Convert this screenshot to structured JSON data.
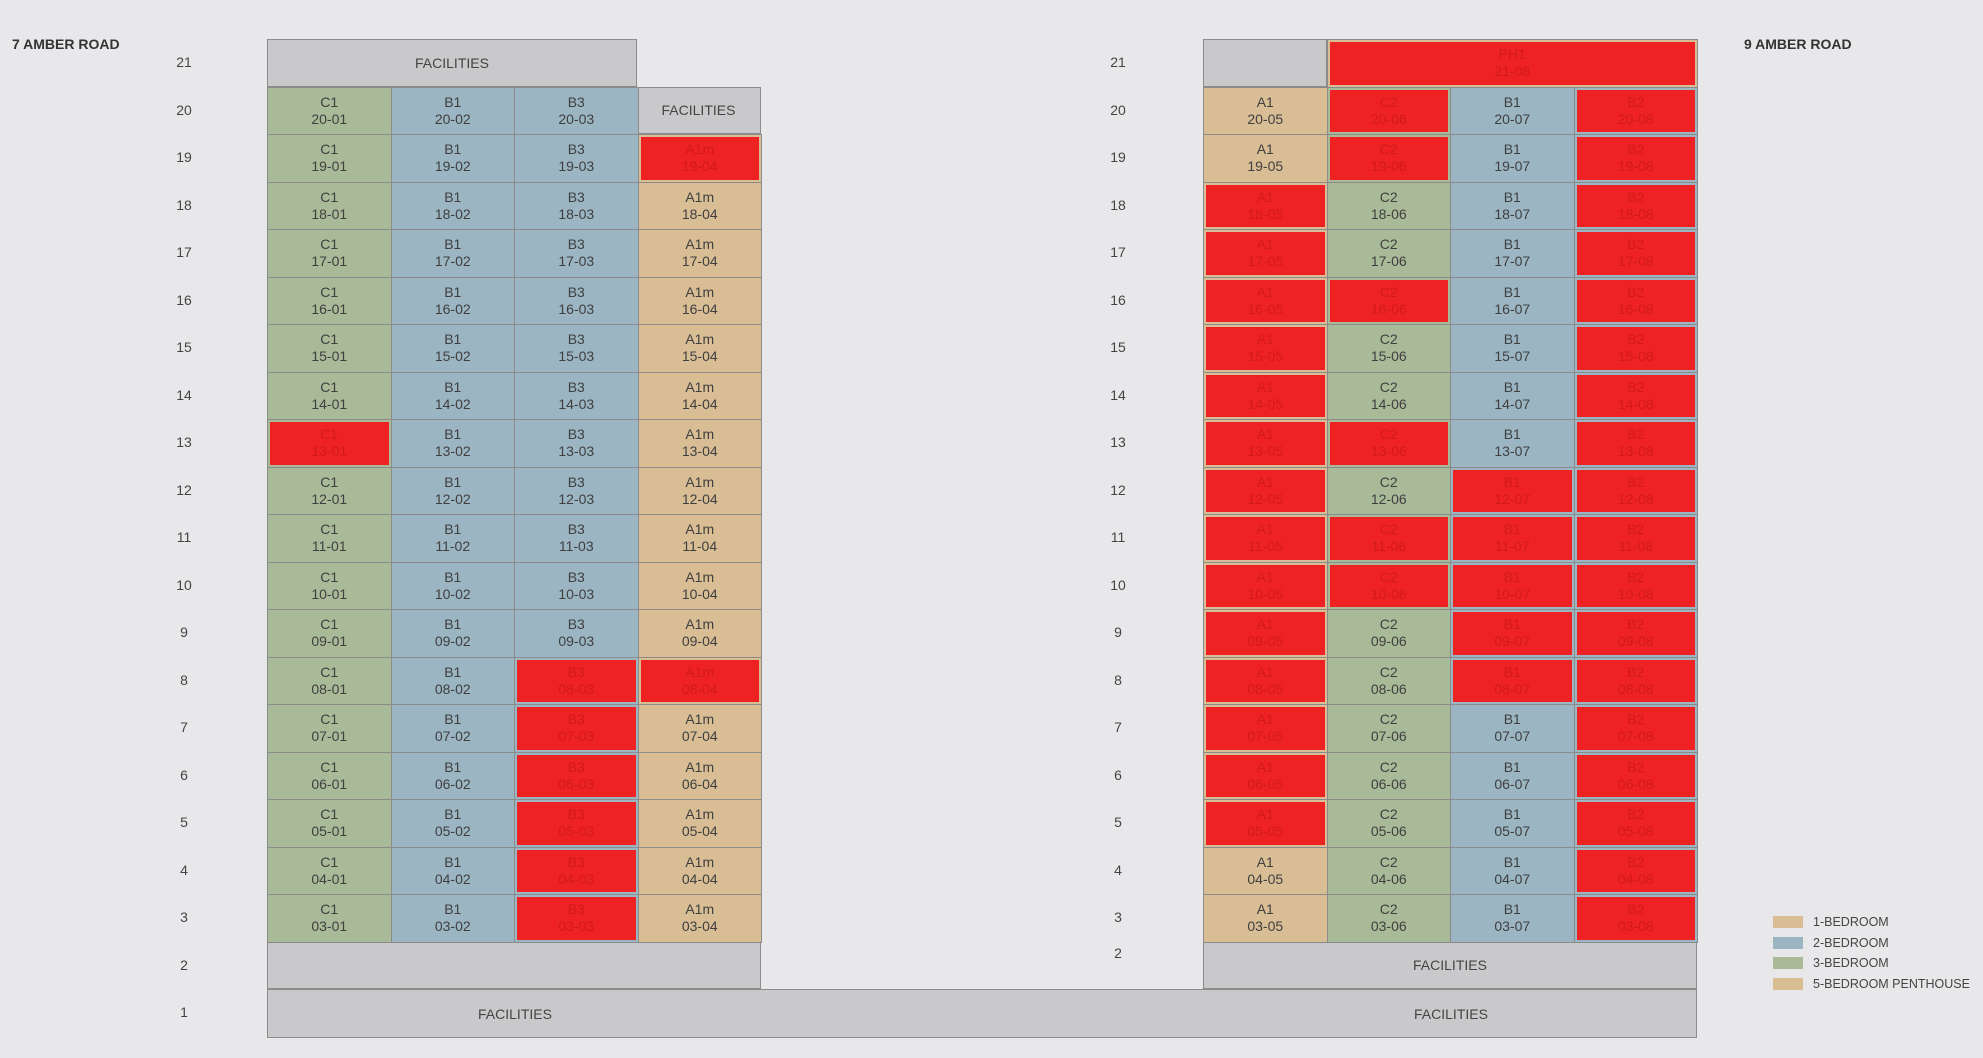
{
  "left_building": {
    "title": "7 AMBER ROAD",
    "facilities_top": "FACILITIES",
    "facilities_right": "FACILITIES",
    "facilities_ground": "FACILITIES",
    "floors": [
      {
        "floor": "20",
        "units": [
          {
            "type": "C1",
            "unit": "20-01"
          },
          {
            "type": "B1",
            "unit": "20-02"
          },
          {
            "type": "B3",
            "unit": "20-03"
          }
        ]
      },
      {
        "floor": "19",
        "units": [
          {
            "type": "C1",
            "unit": "19-01"
          },
          {
            "type": "B1",
            "unit": "19-02"
          },
          {
            "type": "B3",
            "unit": "19-03"
          },
          {
            "type": "A1m",
            "unit": "19-04",
            "sold": true
          }
        ]
      },
      {
        "floor": "18",
        "units": [
          {
            "type": "C1",
            "unit": "18-01"
          },
          {
            "type": "B1",
            "unit": "18-02"
          },
          {
            "type": "B3",
            "unit": "18-03"
          },
          {
            "type": "A1m",
            "unit": "18-04"
          }
        ]
      },
      {
        "floor": "17",
        "units": [
          {
            "type": "C1",
            "unit": "17-01"
          },
          {
            "type": "B1",
            "unit": "17-02"
          },
          {
            "type": "B3",
            "unit": "17-03"
          },
          {
            "type": "A1m",
            "unit": "17-04"
          }
        ]
      },
      {
        "floor": "16",
        "units": [
          {
            "type": "C1",
            "unit": "16-01"
          },
          {
            "type": "B1",
            "unit": "16-02"
          },
          {
            "type": "B3",
            "unit": "16-03"
          },
          {
            "type": "A1m",
            "unit": "16-04"
          }
        ]
      },
      {
        "floor": "15",
        "units": [
          {
            "type": "C1",
            "unit": "15-01"
          },
          {
            "type": "B1",
            "unit": "15-02"
          },
          {
            "type": "B3",
            "unit": "15-03"
          },
          {
            "type": "A1m",
            "unit": "15-04"
          }
        ]
      },
      {
        "floor": "14",
        "units": [
          {
            "type": "C1",
            "unit": "14-01"
          },
          {
            "type": "B1",
            "unit": "14-02"
          },
          {
            "type": "B3",
            "unit": "14-03"
          },
          {
            "type": "A1m",
            "unit": "14-04"
          }
        ]
      },
      {
        "floor": "13",
        "units": [
          {
            "type": "C1",
            "unit": "13-01",
            "sold": true
          },
          {
            "type": "B1",
            "unit": "13-02"
          },
          {
            "type": "B3",
            "unit": "13-03"
          },
          {
            "type": "A1m",
            "unit": "13-04"
          }
        ]
      },
      {
        "floor": "12",
        "units": [
          {
            "type": "C1",
            "unit": "12-01"
          },
          {
            "type": "B1",
            "unit": "12-02"
          },
          {
            "type": "B3",
            "unit": "12-03"
          },
          {
            "type": "A1m",
            "unit": "12-04"
          }
        ]
      },
      {
        "floor": "11",
        "units": [
          {
            "type": "C1",
            "unit": "11-01"
          },
          {
            "type": "B1",
            "unit": "11-02"
          },
          {
            "type": "B3",
            "unit": "11-03"
          },
          {
            "type": "A1m",
            "unit": "11-04"
          }
        ]
      },
      {
        "floor": "10",
        "units": [
          {
            "type": "C1",
            "unit": "10-01"
          },
          {
            "type": "B1",
            "unit": "10-02"
          },
          {
            "type": "B3",
            "unit": "10-03"
          },
          {
            "type": "A1m",
            "unit": "10-04"
          }
        ]
      },
      {
        "floor": "9",
        "units": [
          {
            "type": "C1",
            "unit": "09-01"
          },
          {
            "type": "B1",
            "unit": "09-02"
          },
          {
            "type": "B3",
            "unit": "09-03"
          },
          {
            "type": "A1m",
            "unit": "09-04"
          }
        ]
      },
      {
        "floor": "8",
        "units": [
          {
            "type": "C1",
            "unit": "08-01"
          },
          {
            "type": "B1",
            "unit": "08-02"
          },
          {
            "type": "B3",
            "unit": "08-03",
            "sold": true
          },
          {
            "type": "A1m",
            "unit": "08-04",
            "sold": true
          }
        ]
      },
      {
        "floor": "7",
        "units": [
          {
            "type": "C1",
            "unit": "07-01"
          },
          {
            "type": "B1",
            "unit": "07-02"
          },
          {
            "type": "B3",
            "unit": "07-03",
            "sold": true
          },
          {
            "type": "A1m",
            "unit": "07-04"
          }
        ]
      },
      {
        "floor": "6",
        "units": [
          {
            "type": "C1",
            "unit": "06-01"
          },
          {
            "type": "B1",
            "unit": "06-02"
          },
          {
            "type": "B3",
            "unit": "06-03",
            "sold": true
          },
          {
            "type": "A1m",
            "unit": "06-04"
          }
        ]
      },
      {
        "floor": "5",
        "units": [
          {
            "type": "C1",
            "unit": "05-01"
          },
          {
            "type": "B1",
            "unit": "05-02"
          },
          {
            "type": "B3",
            "unit": "05-03",
            "sold": true
          },
          {
            "type": "A1m",
            "unit": "05-04"
          }
        ]
      },
      {
        "floor": "4",
        "units": [
          {
            "type": "C1",
            "unit": "04-01"
          },
          {
            "type": "B1",
            "unit": "04-02"
          },
          {
            "type": "B3",
            "unit": "04-03",
            "sold": true
          },
          {
            "type": "A1m",
            "unit": "04-04"
          }
        ]
      },
      {
        "floor": "3",
        "units": [
          {
            "type": "C1",
            "unit": "03-01"
          },
          {
            "type": "B1",
            "unit": "03-02"
          },
          {
            "type": "B3",
            "unit": "03-03",
            "sold": true
          },
          {
            "type": "A1m",
            "unit": "03-04"
          }
        ]
      }
    ]
  },
  "right_building": {
    "title": "9 AMBER ROAD",
    "penthouse": {
      "type": "PH1",
      "unit": "21-08",
      "sold": true
    },
    "facilities_floor2": "FACILITIES",
    "facilities_ground": "FACILITIES",
    "floors": [
      {
        "floor": "20",
        "units": [
          {
            "type": "A1",
            "unit": "20-05"
          },
          {
            "type": "C2",
            "unit": "20-06",
            "sold": true
          },
          {
            "type": "B1",
            "unit": "20-07"
          },
          {
            "type": "B2",
            "unit": "20-08",
            "sold": true
          }
        ]
      },
      {
        "floor": "19",
        "units": [
          {
            "type": "A1",
            "unit": "19-05"
          },
          {
            "type": "C2",
            "unit": "19-06",
            "sold": true
          },
          {
            "type": "B1",
            "unit": "19-07"
          },
          {
            "type": "B2",
            "unit": "19-08",
            "sold": true
          }
        ]
      },
      {
        "floor": "18",
        "units": [
          {
            "type": "A1",
            "unit": "18-05",
            "sold": true
          },
          {
            "type": "C2",
            "unit": "18-06"
          },
          {
            "type": "B1",
            "unit": "18-07"
          },
          {
            "type": "B2",
            "unit": "18-08",
            "sold": true
          }
        ]
      },
      {
        "floor": "17",
        "units": [
          {
            "type": "A1",
            "unit": "17-05",
            "sold": true
          },
          {
            "type": "C2",
            "unit": "17-06"
          },
          {
            "type": "B1",
            "unit": "17-07"
          },
          {
            "type": "B2",
            "unit": "17-08",
            "sold": true
          }
        ]
      },
      {
        "floor": "16",
        "units": [
          {
            "type": "A1",
            "unit": "16-05",
            "sold": true
          },
          {
            "type": "C2",
            "unit": "16-06",
            "sold": true
          },
          {
            "type": "B1",
            "unit": "16-07"
          },
          {
            "type": "B2",
            "unit": "16-08",
            "sold": true
          }
        ]
      },
      {
        "floor": "15",
        "units": [
          {
            "type": "A1",
            "unit": "15-05",
            "sold": true
          },
          {
            "type": "C2",
            "unit": "15-06"
          },
          {
            "type": "B1",
            "unit": "15-07"
          },
          {
            "type": "B2",
            "unit": "15-08",
            "sold": true
          }
        ]
      },
      {
        "floor": "14",
        "units": [
          {
            "type": "A1",
            "unit": "14-05",
            "sold": true
          },
          {
            "type": "C2",
            "unit": "14-06"
          },
          {
            "type": "B1",
            "unit": "14-07"
          },
          {
            "type": "B2",
            "unit": "14-08",
            "sold": true
          }
        ]
      },
      {
        "floor": "13",
        "units": [
          {
            "type": "A1",
            "unit": "13-05",
            "sold": true
          },
          {
            "type": "C2",
            "unit": "13-06",
            "sold": true
          },
          {
            "type": "B1",
            "unit": "13-07"
          },
          {
            "type": "B2",
            "unit": "13-08",
            "sold": true
          }
        ]
      },
      {
        "floor": "12",
        "units": [
          {
            "type": "A1",
            "unit": "12-05",
            "sold": true
          },
          {
            "type": "C2",
            "unit": "12-06"
          },
          {
            "type": "B1",
            "unit": "12-07",
            "sold": true
          },
          {
            "type": "B2",
            "unit": "12-08",
            "sold": true
          }
        ]
      },
      {
        "floor": "11",
        "units": [
          {
            "type": "A1",
            "unit": "11-05",
            "sold": true
          },
          {
            "type": "C2",
            "unit": "11-06",
            "sold": true
          },
          {
            "type": "B1",
            "unit": "11-07",
            "sold": true
          },
          {
            "type": "B2",
            "unit": "11-08",
            "sold": true
          }
        ]
      },
      {
        "floor": "10",
        "units": [
          {
            "type": "A1",
            "unit": "10-05",
            "sold": true
          },
          {
            "type": "C2",
            "unit": "10-06",
            "sold": true
          },
          {
            "type": "B1",
            "unit": "10-07",
            "sold": true
          },
          {
            "type": "B2",
            "unit": "10-08",
            "sold": true
          }
        ]
      },
      {
        "floor": "9",
        "units": [
          {
            "type": "A1",
            "unit": "09-05",
            "sold": true
          },
          {
            "type": "C2",
            "unit": "09-06"
          },
          {
            "type": "B1",
            "unit": "09-07",
            "sold": true
          },
          {
            "type": "B2",
            "unit": "09-08",
            "sold": true
          }
        ]
      },
      {
        "floor": "8",
        "units": [
          {
            "type": "A1",
            "unit": "08-05",
            "sold": true
          },
          {
            "type": "C2",
            "unit": "08-06"
          },
          {
            "type": "B1",
            "unit": "08-07",
            "sold": true
          },
          {
            "type": "B2",
            "unit": "08-08",
            "sold": true
          }
        ]
      },
      {
        "floor": "7",
        "units": [
          {
            "type": "A1",
            "unit": "07-05",
            "sold": true
          },
          {
            "type": "C2",
            "unit": "07-06"
          },
          {
            "type": "B1",
            "unit": "07-07"
          },
          {
            "type": "B2",
            "unit": "07-08",
            "sold": true
          }
        ]
      },
      {
        "floor": "6",
        "units": [
          {
            "type": "A1",
            "unit": "06-05",
            "sold": true
          },
          {
            "type": "C2",
            "unit": "06-06"
          },
          {
            "type": "B1",
            "unit": "06-07"
          },
          {
            "type": "B2",
            "unit": "06-08",
            "sold": true
          }
        ]
      },
      {
        "floor": "5",
        "units": [
          {
            "type": "A1",
            "unit": "05-05",
            "sold": true
          },
          {
            "type": "C2",
            "unit": "05-06"
          },
          {
            "type": "B1",
            "unit": "05-07"
          },
          {
            "type": "B2",
            "unit": "05-08",
            "sold": true
          }
        ]
      },
      {
        "floor": "4",
        "units": [
          {
            "type": "A1",
            "unit": "04-05"
          },
          {
            "type": "C2",
            "unit": "04-06"
          },
          {
            "type": "B1",
            "unit": "04-07"
          },
          {
            "type": "B2",
            "unit": "04-08",
            "sold": true
          }
        ]
      },
      {
        "floor": "3",
        "units": [
          {
            "type": "A1",
            "unit": "03-05"
          },
          {
            "type": "C2",
            "unit": "03-06"
          },
          {
            "type": "B1",
            "unit": "03-07"
          },
          {
            "type": "B2",
            "unit": "03-08",
            "sold": true
          }
        ]
      }
    ]
  },
  "floor_numbers": {
    "left": [
      "21",
      "20",
      "19",
      "18",
      "17",
      "16",
      "15",
      "14",
      "13",
      "12",
      "11",
      "10",
      "9",
      "8",
      "7",
      "6",
      "5",
      "4",
      "3",
      "2",
      "1"
    ],
    "right": [
      "21",
      "20",
      "19",
      "18",
      "17",
      "16",
      "15",
      "14",
      "13",
      "12",
      "11",
      "10",
      "9",
      "8",
      "7",
      "6",
      "5",
      "4",
      "3",
      "2"
    ]
  },
  "legend": [
    {
      "label": "1-BEDROOM",
      "color": "#d8bd95"
    },
    {
      "label": "2-BEDROOM",
      "color": "#9bb5c3"
    },
    {
      "label": "3-BEDROOM",
      "color": "#a9ba98"
    },
    {
      "label": "5-BEDROOM PENTHOUSE",
      "color": "#d8bd95"
    }
  ],
  "colors": {
    "one_bedroom": "#d8bd95",
    "two_bedroom": "#9bb5c3",
    "three_bedroom": "#a9ba98",
    "sold": "#ee2222",
    "facilities": "#c9c9cb"
  }
}
